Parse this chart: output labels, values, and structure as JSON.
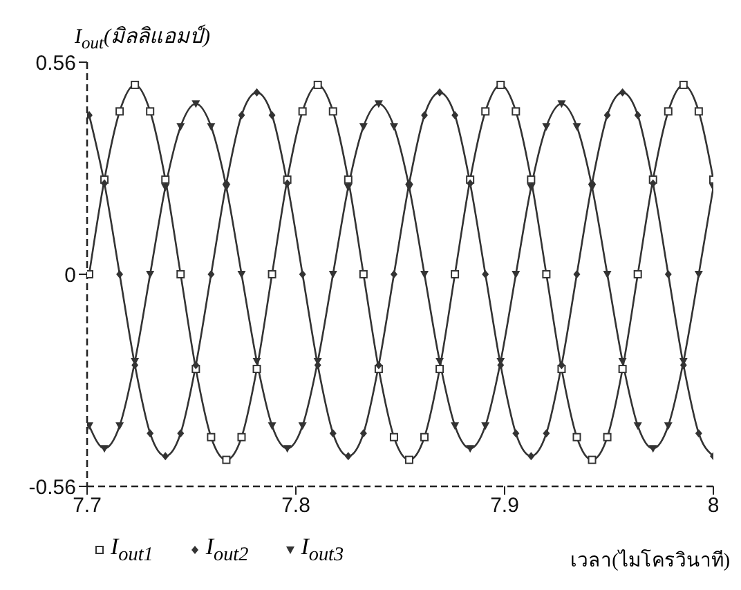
{
  "chart_data": {
    "type": "line",
    "xlabel": "เวลา(ไมโครวินาที)",
    "ylabel": "I$_{out}$(มิลลิแอมป์)",
    "x": [
      7.701,
      7.7083,
      7.7156,
      7.7229,
      7.7302,
      7.7375,
      7.7448,
      7.7521,
      7.7594,
      7.7667,
      7.774,
      7.7813,
      7.7886,
      7.7959,
      7.8032,
      7.8105,
      7.8178,
      7.8251,
      7.8324,
      7.8397,
      7.847,
      7.8543,
      7.8616,
      7.8689,
      7.8762,
      7.8835,
      7.8908,
      7.8981,
      7.9054,
      7.9127,
      7.92,
      7.9273,
      7.9346,
      7.9419,
      7.9492,
      7.9565,
      7.9638,
      7.9711,
      7.9784,
      7.9857,
      7.993,
      8.0
    ],
    "series": [
      {
        "name": "I$_{out1}$",
        "color": "#333333",
        "marker": "square",
        "values": [
          0,
          0.25,
          0.43,
          0.5,
          0.43,
          0.25,
          0,
          -0.25,
          -0.43,
          -0.49,
          -0.43,
          -0.25,
          0,
          0.25,
          0.43,
          0.5,
          0.43,
          0.25,
          0,
          -0.25,
          -0.43,
          -0.49,
          -0.43,
          -0.25,
          0,
          0.25,
          0.43,
          0.5,
          0.43,
          0.25,
          0,
          -0.25,
          -0.43,
          -0.49,
          -0.43,
          -0.25,
          0,
          0.25,
          0.43,
          0.5,
          0.43,
          0.25
        ]
      },
      {
        "name": "I$_{out2}$",
        "color": "#333333",
        "marker": "diamond",
        "values": [
          0.42,
          0.24,
          0,
          -0.24,
          -0.42,
          -0.48,
          -0.42,
          -0.24,
          0,
          0.24,
          0.42,
          0.48,
          0.42,
          0.24,
          0,
          -0.24,
          -0.42,
          -0.48,
          -0.42,
          -0.24,
          0,
          0.24,
          0.42,
          0.48,
          0.42,
          0.24,
          0,
          -0.24,
          -0.42,
          -0.48,
          -0.42,
          -0.24,
          0,
          0.24,
          0.42,
          0.48,
          0.42,
          0.24,
          0,
          -0.24,
          -0.42,
          -0.48
        ]
      },
      {
        "name": "I$_{out3}$",
        "color": "#333333",
        "marker": "triangle",
        "values": [
          -0.4,
          -0.46,
          -0.4,
          -0.23,
          0,
          0.23,
          0.39,
          0.45,
          0.39,
          0.23,
          0,
          -0.23,
          -0.4,
          -0.46,
          -0.4,
          -0.23,
          0,
          0.23,
          0.39,
          0.45,
          0.39,
          0.23,
          0,
          -0.23,
          -0.4,
          -0.46,
          -0.4,
          -0.23,
          0,
          0.23,
          0.39,
          0.45,
          0.39,
          0.23,
          0,
          -0.23,
          -0.4,
          -0.46,
          -0.4,
          -0.23,
          0,
          0.23
        ]
      }
    ],
    "xlim": [
      7.7,
      8
    ],
    "xticks": [
      7.7,
      7.8,
      7.9,
      8
    ],
    "ylim": [
      -0.56,
      0.56
    ],
    "yticks": [
      -0.56,
      0,
      0.56
    ],
    "grid": false,
    "legend": "bottom left",
    "line_style": "solid"
  }
}
